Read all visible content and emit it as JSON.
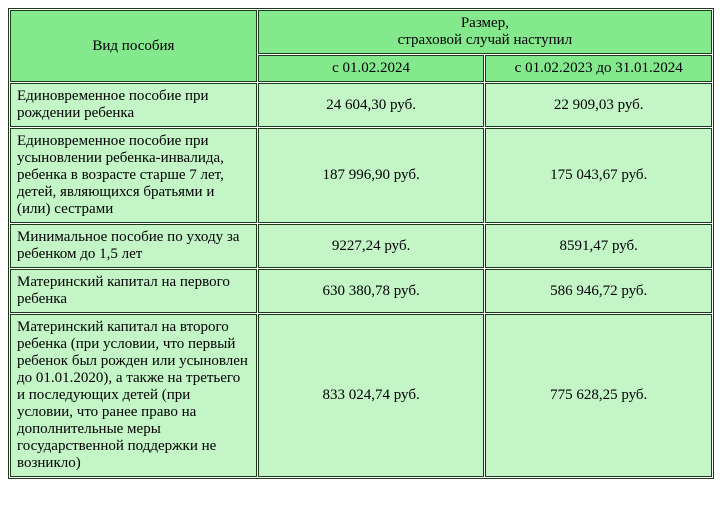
{
  "table": {
    "header": {
      "type_label": "Вид пособия",
      "amount_label_line1": "Размер,",
      "amount_label_line2": "страховой случай наступил",
      "period_1": "с 01.02.2024",
      "period_2": "с 01.02.2023 до 31.01.2024"
    },
    "rows": [
      {
        "type": "Единовременное пособие при рождении ребенка",
        "val1": "24 604,30 руб.",
        "val2": "22 909,03 руб."
      },
      {
        "type": "Единовременное пособие при усыновлении ребенка-инвалида, ребенка в возрасте старше 7 лет, детей, являющихся братьями и (или) сестрами",
        "val1": "187 996,90 руб.",
        "val2": "175 043,67 руб."
      },
      {
        "type": "Минимальное пособие по уходу за ребенком до 1,5 лет",
        "val1": "9227,24 руб.",
        "val2": "8591,47 руб."
      },
      {
        "type": "Материнский капитал на первого ребенка",
        "val1": "630 380,78 руб.",
        "val2": "586 946,72 руб."
      },
      {
        "type": "Материнский капитал на второго ребенка (при условии, что первый ребенок был рожден или усыновлен до 01.01.2020), а также на третьего и последующих детей (при условии, что ранее право на дополнительные меры государственной поддержки не возникло)",
        "val1": "833 024,74 руб.",
        "val2": "775 628,25 руб."
      }
    ],
    "colors": {
      "header_bg": "#84e88c",
      "cell_bg": "#c3f5c7",
      "border": "#1a3a1a"
    }
  }
}
